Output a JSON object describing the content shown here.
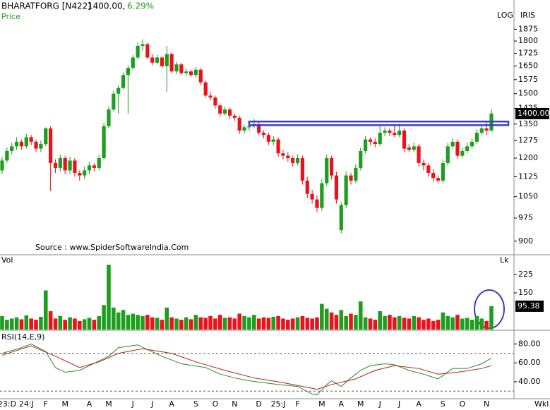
{
  "chart_data": {
    "type": "candlestick",
    "title": "BHARATFORG [N422]",
    "quote": "1400.00,",
    "change": "6.29%",
    "price_label": "Price",
    "log_label": "LOG",
    "brand": "IRIS",
    "source": "Source : www.SpiderSoftwareIndia.Com",
    "period": "Wkl",
    "log": true,
    "categories": [
      null,
      "23:D",
      null,
      null,
      null,
      "24:J",
      null,
      null,
      null,
      "F",
      null,
      null,
      null,
      "M",
      null,
      null,
      null,
      null,
      "A",
      null,
      null,
      null,
      "M",
      null,
      null,
      null,
      null,
      "J",
      null,
      null,
      null,
      "J",
      null,
      null,
      null,
      "A",
      null,
      null,
      null,
      null,
      "S",
      null,
      null,
      null,
      "O",
      null,
      null,
      null,
      "N",
      null,
      null,
      null,
      null,
      "D",
      null,
      null,
      null,
      "25:J",
      null,
      null,
      null,
      "F",
      null,
      null,
      null,
      null,
      "M",
      null,
      null,
      null,
      "A",
      null,
      null,
      null,
      "M",
      null,
      null,
      null,
      "J",
      null,
      null,
      null,
      "J",
      null,
      null,
      null,
      "A",
      null,
      null,
      null,
      null,
      "S",
      null,
      null,
      null,
      "O",
      null,
      null,
      null,
      null,
      "N",
      null
    ],
    "ohlc": [
      [
        1150,
        1205,
        1135,
        1190
      ],
      [
        1190,
        1245,
        1180,
        1230
      ],
      [
        1230,
        1265,
        1215,
        1250
      ],
      [
        1250,
        1290,
        1235,
        1270
      ],
      [
        1270,
        1280,
        1235,
        1250
      ],
      [
        1250,
        1305,
        1240,
        1290
      ],
      [
        1290,
        1300,
        1255,
        1270
      ],
      [
        1270,
        1280,
        1225,
        1240
      ],
      [
        1240,
        1275,
        1225,
        1260
      ],
      [
        1260,
        1335,
        1250,
        1330
      ],
      [
        1330,
        1340,
        1070,
        1180
      ],
      [
        1180,
        1195,
        1140,
        1160
      ],
      [
        1160,
        1215,
        1145,
        1200
      ],
      [
        1200,
        1210,
        1135,
        1150
      ],
      [
        1150,
        1205,
        1135,
        1190
      ],
      [
        1190,
        1200,
        1125,
        1140
      ],
      [
        1140,
        1150,
        1110,
        1130
      ],
      [
        1130,
        1165,
        1115,
        1150
      ],
      [
        1150,
        1185,
        1135,
        1170
      ],
      [
        1170,
        1180,
        1145,
        1160
      ],
      [
        1160,
        1215,
        1150,
        1200
      ],
      [
        1200,
        1355,
        1195,
        1340
      ],
      [
        1340,
        1435,
        1330,
        1420
      ],
      [
        1420,
        1515,
        1410,
        1500
      ],
      [
        1500,
        1545,
        1400,
        1530
      ],
      [
        1530,
        1615,
        1520,
        1600
      ],
      [
        1600,
        1655,
        1400,
        1640
      ],
      [
        1640,
        1715,
        1630,
        1700
      ],
      [
        1700,
        1790,
        1690,
        1770
      ],
      [
        1770,
        1810,
        1740,
        1780
      ],
      [
        1780,
        1790,
        1690,
        1700
      ],
      [
        1700,
        1720,
        1655,
        1670
      ],
      [
        1670,
        1715,
        1660,
        1700
      ],
      [
        1700,
        1710,
        1640,
        1650
      ],
      [
        1650,
        1770,
        1510,
        1720
      ],
      [
        1720,
        1730,
        1610,
        1620
      ],
      [
        1620,
        1675,
        1605,
        1660
      ],
      [
        1660,
        1670,
        1600,
        1610
      ],
      [
        1610,
        1635,
        1595,
        1620
      ],
      [
        1620,
        1630,
        1590,
        1600
      ],
      [
        1600,
        1645,
        1585,
        1630
      ],
      [
        1630,
        1640,
        1545,
        1560
      ],
      [
        1560,
        1570,
        1480,
        1490
      ],
      [
        1490,
        1510,
        1465,
        1480
      ],
      [
        1480,
        1490,
        1425,
        1440
      ],
      [
        1440,
        1450,
        1385,
        1400
      ],
      [
        1400,
        1435,
        1390,
        1420
      ],
      [
        1420,
        1430,
        1375,
        1390
      ],
      [
        1390,
        1400,
        1365,
        1380
      ],
      [
        1380,
        1390,
        1305,
        1320
      ],
      [
        1320,
        1345,
        1305,
        1335
      ],
      [
        1335,
        1350,
        1320,
        1340
      ],
      [
        1340,
        1375,
        1330,
        1350
      ],
      [
        1350,
        1360,
        1300,
        1310
      ],
      [
        1310,
        1320,
        1285,
        1300
      ],
      [
        1300,
        1310,
        1255,
        1270
      ],
      [
        1270,
        1295,
        1255,
        1280
      ],
      [
        1280,
        1290,
        1205,
        1220
      ],
      [
        1220,
        1235,
        1195,
        1210
      ],
      [
        1210,
        1225,
        1185,
        1200
      ],
      [
        1200,
        1210,
        1165,
        1180
      ],
      [
        1180,
        1215,
        1170,
        1200
      ],
      [
        1200,
        1210,
        1095,
        1110
      ],
      [
        1110,
        1125,
        1045,
        1060
      ],
      [
        1060,
        1075,
        1025,
        1040
      ],
      [
        1040,
        1055,
        995,
        1010
      ],
      [
        1010,
        1115,
        1000,
        1100
      ],
      [
        1100,
        1215,
        1090,
        1200
      ],
      [
        1200,
        1210,
        1115,
        1130
      ],
      [
        1130,
        1145,
        1025,
        1040
      ],
      [
        935,
        1030,
        925,
        1020
      ],
      [
        1020,
        1145,
        1010,
        1130
      ],
      [
        1130,
        1140,
        1095,
        1110
      ],
      [
        1110,
        1175,
        1100,
        1160
      ],
      [
        1160,
        1245,
        1150,
        1230
      ],
      [
        1230,
        1295,
        1220,
        1280
      ],
      [
        1280,
        1290,
        1255,
        1270
      ],
      [
        1270,
        1285,
        1245,
        1260
      ],
      [
        1260,
        1350,
        1250,
        1310
      ],
      [
        1310,
        1335,
        1295,
        1320
      ],
      [
        1320,
        1330,
        1295,
        1310
      ],
      [
        1310,
        1345,
        1290,
        1300
      ],
      [
        1300,
        1350,
        1290,
        1320
      ],
      [
        1320,
        1330,
        1225,
        1240
      ],
      [
        1245,
        1260,
        1225,
        1235
      ],
      [
        1235,
        1265,
        1225,
        1250
      ],
      [
        1250,
        1260,
        1165,
        1180
      ],
      [
        1180,
        1195,
        1150,
        1170
      ],
      [
        1170,
        1180,
        1125,
        1140
      ],
      [
        1140,
        1155,
        1105,
        1120
      ],
      [
        1120,
        1130,
        1100,
        1110
      ],
      [
        1110,
        1195,
        1100,
        1180
      ],
      [
        1180,
        1265,
        1170,
        1250
      ],
      [
        1250,
        1285,
        1240,
        1270
      ],
      [
        1270,
        1280,
        1195,
        1210
      ],
      [
        1210,
        1245,
        1200,
        1230
      ],
      [
        1230,
        1265,
        1220,
        1250
      ],
      [
        1250,
        1285,
        1240,
        1270
      ],
      [
        1270,
        1325,
        1260,
        1310
      ],
      [
        1310,
        1345,
        1300,
        1330
      ],
      [
        1330,
        1360,
        1300,
        1320
      ],
      [
        1320,
        1420,
        1315,
        1400
      ]
    ],
    "up_color": "#1e9e1e",
    "down_color": "#e8131b",
    "ylim": [
      865,
      2000
    ],
    "yticks": [
      900,
      975,
      1050,
      1125,
      1200,
      1275,
      1350,
      1425,
      1500,
      1575,
      1650,
      1725,
      1800,
      1875
    ],
    "last_price_label": "1400.00",
    "resistance": {
      "low": 1345,
      "high": 1362,
      "start": 51,
      "color": "#3b3fc4"
    },
    "volume": {
      "label": "Vol",
      "unit": "Lk",
      "ylim": [
        0,
        300
      ],
      "yticks": [
        150,
        225
      ],
      "values": [
        55,
        40,
        45,
        50,
        42,
        58,
        45,
        40,
        52,
        160,
        75,
        45,
        55,
        40,
        50,
        45,
        35,
        42,
        48,
        40,
        55,
        100,
        265,
        90,
        70,
        80,
        60,
        65,
        60,
        55,
        60,
        50,
        48,
        40,
        90,
        50,
        45,
        40,
        50,
        42,
        60,
        50,
        48,
        55,
        45,
        60,
        48,
        50,
        45,
        65,
        55,
        50,
        60,
        45,
        50,
        48,
        52,
        55,
        45,
        40,
        45,
        50,
        55,
        48,
        45,
        50,
        105,
        85,
        70,
        60,
        80,
        55,
        65,
        60,
        115,
        50,
        45,
        40,
        75,
        55,
        60,
        50,
        55,
        48,
        45,
        55,
        50,
        40,
        45,
        35,
        40,
        70,
        55,
        50,
        60,
        45,
        48,
        40,
        55,
        45,
        35,
        95.38
      ]
    },
    "rsi": {
      "label": "RSI(14,E,9)",
      "levels": [
        70,
        30
      ],
      "ylim": [
        22,
        93
      ],
      "yticks": [
        {
          "value": 40,
          "label": "40.00"
        },
        {
          "value": 60,
          "label": "60.00"
        },
        {
          "value": 80,
          "label": "80.00"
        }
      ],
      "series": [
        {
          "color": "#2a8a2a",
          "x": [
            0,
            4,
            6,
            9,
            11,
            13,
            16,
            18,
            22,
            24,
            28,
            30,
            33,
            37,
            42,
            45,
            48,
            51,
            54,
            57,
            61,
            64,
            65,
            67,
            68,
            70,
            72,
            74,
            76,
            79,
            81,
            84,
            87,
            90,
            93,
            96,
            99,
            101
          ],
          "values": [
            70,
            76,
            80,
            72,
            55,
            50,
            52,
            57,
            67,
            76,
            79,
            74,
            67,
            59,
            55,
            48,
            44,
            41,
            39,
            37,
            35,
            27,
            26,
            37,
            41,
            35,
            44,
            52,
            57,
            59,
            58,
            52,
            48,
            43,
            54,
            54,
            59,
            65
          ]
        },
        {
          "color": "#b02020",
          "x": [
            0,
            6,
            11,
            16,
            20,
            24,
            29,
            35,
            40,
            46,
            52,
            58,
            64,
            65,
            68,
            73,
            77,
            81,
            86,
            90,
            94,
            99,
            101
          ],
          "values": [
            68,
            78,
            67,
            55,
            61,
            70,
            75,
            70,
            61,
            52,
            44,
            39,
            33,
            32,
            37,
            43,
            52,
            57,
            54,
            48,
            50,
            54,
            57
          ]
        }
      ]
    }
  }
}
